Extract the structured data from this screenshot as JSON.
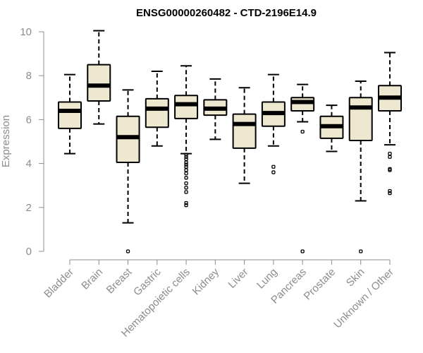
{
  "chart_data": {
    "type": "boxplot",
    "title": "ENSG00000260482 - CTD-2196E14.9",
    "xlabel": "",
    "ylabel": "Expression",
    "ylim": [
      0,
      10
    ],
    "yticks": [
      0,
      2,
      4,
      6,
      8,
      10
    ],
    "box_fill": "#efe8d0",
    "box_stroke": "#000000",
    "axis_color": "#8c8c8c",
    "categories": [
      "Bladder",
      "Brain",
      "Breast",
      "Gastric",
      "Hematopoietic cells",
      "Kidney",
      "Liver",
      "Lung",
      "Pancreas",
      "Prostate",
      "Skin",
      "Unknown / Other"
    ],
    "boxes": [
      {
        "category": "Bladder",
        "whisker_low": 4.45,
        "q1": 5.6,
        "median": 6.4,
        "q3": 6.8,
        "whisker_high": 8.05,
        "outliers": []
      },
      {
        "category": "Brain",
        "whisker_low": 5.8,
        "q1": 6.85,
        "median": 7.55,
        "q3": 8.5,
        "whisker_high": 10.05,
        "outliers": []
      },
      {
        "category": "Breast",
        "whisker_low": 1.3,
        "q1": 4.05,
        "median": 5.2,
        "q3": 6.15,
        "whisker_high": 7.35,
        "outliers": [
          0.0
        ]
      },
      {
        "category": "Gastric",
        "whisker_low": 4.8,
        "q1": 5.65,
        "median": 6.5,
        "q3": 6.95,
        "whisker_high": 8.2,
        "outliers": []
      },
      {
        "category": "Hematopoietic cells",
        "whisker_low": 4.45,
        "q1": 6.05,
        "median": 6.7,
        "q3": 7.1,
        "whisker_high": 8.45,
        "outliers": [
          4.4,
          4.3,
          4.2,
          4.05,
          3.95,
          3.85,
          3.7,
          3.55,
          3.35,
          3.1,
          2.9,
          2.7,
          2.2,
          2.1
        ]
      },
      {
        "category": "Kidney",
        "whisker_low": 5.1,
        "q1": 6.2,
        "median": 6.5,
        "q3": 6.9,
        "whisker_high": 7.85,
        "outliers": []
      },
      {
        "category": "Liver",
        "whisker_low": 3.1,
        "q1": 4.7,
        "median": 5.8,
        "q3": 6.25,
        "whisker_high": 7.45,
        "outliers": []
      },
      {
        "category": "Lung",
        "whisker_low": 4.8,
        "q1": 5.7,
        "median": 6.3,
        "q3": 6.8,
        "whisker_high": 8.05,
        "outliers": [
          3.85,
          3.6
        ]
      },
      {
        "category": "Pancreas",
        "whisker_low": 5.9,
        "q1": 6.4,
        "median": 6.8,
        "q3": 7.0,
        "whisker_high": 7.6,
        "outliers": [
          5.45,
          0.0
        ]
      },
      {
        "category": "Prostate",
        "whisker_low": 4.55,
        "q1": 5.15,
        "median": 5.7,
        "q3": 6.15,
        "whisker_high": 6.65,
        "outliers": []
      },
      {
        "category": "Skin",
        "whisker_low": 2.3,
        "q1": 5.05,
        "median": 6.55,
        "q3": 7.0,
        "whisker_high": 7.75,
        "outliers": [
          0.0
        ]
      },
      {
        "category": "Unknown / Other",
        "whisker_low": 4.85,
        "q1": 6.4,
        "median": 7.0,
        "q3": 7.55,
        "whisker_high": 9.05,
        "outliers": [
          4.45,
          4.3,
          3.75,
          3.7,
          2.75,
          2.65
        ]
      }
    ]
  }
}
